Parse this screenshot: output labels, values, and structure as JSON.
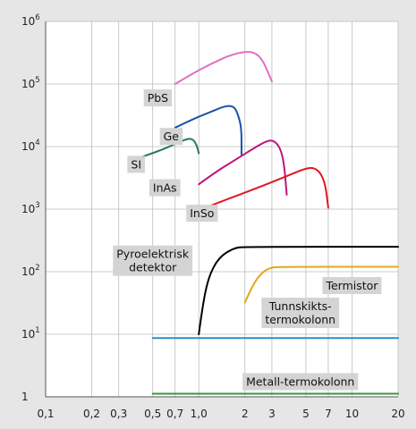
{
  "chart_data": {
    "type": "line",
    "x_scale": "log",
    "y_scale": "log",
    "xlim": [
      0.1,
      20
    ],
    "ylim": [
      1,
      1000000
    ],
    "x_ticks": [
      0.1,
      0.2,
      0.3,
      0.5,
      0.7,
      1.0,
      2,
      3,
      5,
      7,
      10,
      20
    ],
    "x_tick_labels": [
      "0,1",
      "0,2",
      "0,3",
      "0,5",
      "0,7",
      "1,0",
      "2",
      "3",
      "5",
      "7",
      "10",
      "20"
    ],
    "y_ticks": [
      1,
      10,
      100,
      1000,
      10000,
      100000,
      1000000
    ],
    "y_tick_labels": [
      {
        "base": "1",
        "exp": ""
      },
      {
        "base": "10",
        "exp": "1"
      },
      {
        "base": "10",
        "exp": "2"
      },
      {
        "base": "10",
        "exp": "3"
      },
      {
        "base": "10",
        "exp": "4"
      },
      {
        "base": "10",
        "exp": "5"
      },
      {
        "base": "10",
        "exp": "6"
      }
    ],
    "grid": true,
    "series": [
      {
        "name": "PbS",
        "color": "#e070c0",
        "label_x": 0.54,
        "label_y": 60000,
        "points": [
          [
            0.7,
            100000
          ],
          [
            0.9,
            145000
          ],
          [
            1.2,
            210000
          ],
          [
            1.6,
            290000
          ],
          [
            2.0,
            330000
          ],
          [
            2.3,
            320000
          ],
          [
            2.6,
            250000
          ],
          [
            3.0,
            110000
          ]
        ]
      },
      {
        "name": "Ge",
        "color": "#1a52a8",
        "label_x": 0.66,
        "label_y": 14500,
        "points": [
          [
            0.7,
            20000
          ],
          [
            0.9,
            27000
          ],
          [
            1.2,
            36000
          ],
          [
            1.5,
            45000
          ],
          [
            1.7,
            44000
          ],
          [
            1.8,
            33000
          ],
          [
            1.9,
            20000
          ],
          [
            1.9,
            7500
          ]
        ]
      },
      {
        "name": "SI",
        "color": "#237a5f",
        "label_x": 0.39,
        "label_y": 5200,
        "points": [
          [
            0.4,
            6500
          ],
          [
            0.55,
            8500
          ],
          [
            0.7,
            11000
          ],
          [
            0.85,
            13500
          ],
          [
            0.92,
            13000
          ],
          [
            0.97,
            10500
          ],
          [
            1.0,
            7800
          ]
        ]
      },
      {
        "name": "InAs",
        "color": "#c0147a",
        "label_x": 0.6,
        "label_y": 2200,
        "points": [
          [
            1.0,
            2500
          ],
          [
            1.3,
            4000
          ],
          [
            1.8,
            6500
          ],
          [
            2.3,
            9500
          ],
          [
            2.8,
            12500
          ],
          [
            3.1,
            12500
          ],
          [
            3.4,
            9500
          ],
          [
            3.6,
            5500
          ],
          [
            3.75,
            1700
          ]
        ]
      },
      {
        "name": "InSo",
        "color": "#e21822",
        "label_x": 1.05,
        "label_y": 860,
        "points": [
          [
            1.1,
            1050
          ],
          [
            1.6,
            1500
          ],
          [
            2.2,
            2000
          ],
          [
            3.0,
            2700
          ],
          [
            4.0,
            3600
          ],
          [
            5.0,
            4500
          ],
          [
            5.6,
            4600
          ],
          [
            6.2,
            3900
          ],
          [
            6.7,
            2500
          ],
          [
            7.0,
            1050
          ]
        ]
      },
      {
        "name": "Pyroelektrisk detektor",
        "label_lines": [
          "Pyroelektrisk",
          "detektor"
        ],
        "color": "#000000",
        "label_x": 0.5,
        "label_y": 150,
        "points": [
          [
            1.0,
            10
          ],
          [
            1.05,
            25
          ],
          [
            1.15,
            80
          ],
          [
            1.35,
            170
          ],
          [
            1.7,
            240
          ],
          [
            2.0,
            250
          ],
          [
            20,
            250
          ]
        ]
      },
      {
        "name": "Termistor",
        "color": "#e3a81b",
        "label_x": 10,
        "label_y": 60,
        "points": [
          [
            2.0,
            32
          ],
          [
            2.2,
            55
          ],
          [
            2.5,
            90
          ],
          [
            2.9,
            117
          ],
          [
            3.5,
            120
          ],
          [
            20,
            120
          ]
        ]
      },
      {
        "name": "Tunnskikts-termokolonn",
        "label_lines": [
          "Tunnskikts-",
          "termokolonn"
        ],
        "color": "#2a90c8",
        "label_x": 4.6,
        "label_y": 22,
        "points": [
          [
            0.5,
            8.7
          ],
          [
            20,
            8.7
          ]
        ]
      },
      {
        "name": "Metall-termokolonn",
        "color": "#3e9438",
        "label_x": 4.6,
        "label_y": 1.75,
        "points": [
          [
            0.5,
            1.12
          ],
          [
            20,
            1.12
          ]
        ]
      }
    ]
  }
}
